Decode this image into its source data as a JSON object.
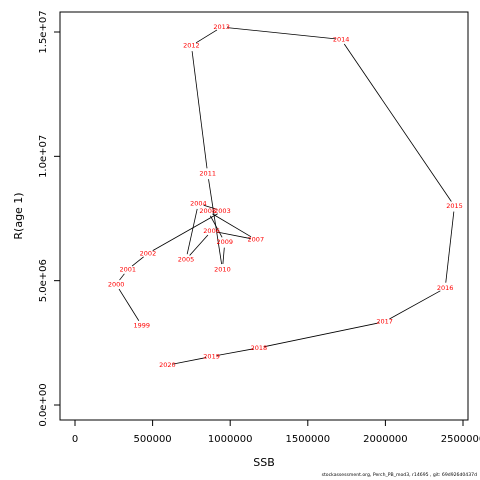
{
  "chart_data": {
    "type": "line",
    "xlabel": "SSB",
    "ylabel": "R(age 1)",
    "x_ticks": [
      0,
      500000,
      1000000,
      1500000,
      2000000,
      2500000
    ],
    "x_tick_labels": [
      "0",
      "500000",
      "1000000",
      "1500000",
      "2000000",
      "2500000"
    ],
    "y_ticks": [
      0,
      5000000,
      10000000,
      15000000
    ],
    "y_tick_labels": [
      "0.0e+00",
      "5.0e+06",
      "1.0e+07",
      "1.5e+07"
    ],
    "grid": false,
    "points": [
      {
        "label": "1999",
        "x": 430000,
        "y": 3200000
      },
      {
        "label": "2000",
        "x": 265000,
        "y": 4850000
      },
      {
        "label": "2001",
        "x": 340000,
        "y": 5450000
      },
      {
        "label": "2002",
        "x": 470000,
        "y": 6100000
      },
      {
        "label": "2003",
        "x": 950000,
        "y": 7800000
      },
      {
        "label": "2004",
        "x": 795000,
        "y": 8100000
      },
      {
        "label": "2005",
        "x": 715000,
        "y": 5850000
      },
      {
        "label": "2006",
        "x": 880000,
        "y": 7000000
      },
      {
        "label": "2007",
        "x": 1165000,
        "y": 6650000
      },
      {
        "label": "2008",
        "x": 855000,
        "y": 7800000
      },
      {
        "label": "2009",
        "x": 965000,
        "y": 6550000
      },
      {
        "label": "2010",
        "x": 950000,
        "y": 5450000
      },
      {
        "label": "2011",
        "x": 855000,
        "y": 9300000
      },
      {
        "label": "2012",
        "x": 750000,
        "y": 14450000
      },
      {
        "label": "2013",
        "x": 945000,
        "y": 15200000
      },
      {
        "label": "2014",
        "x": 1715000,
        "y": 14700000
      },
      {
        "label": "2015",
        "x": 2445000,
        "y": 8000000
      },
      {
        "label": "2016",
        "x": 2385000,
        "y": 4700000
      },
      {
        "label": "2017",
        "x": 1995000,
        "y": 3350000
      },
      {
        "label": "2018",
        "x": 1185000,
        "y": 2300000
      },
      {
        "label": "2019",
        "x": 880000,
        "y": 1950000
      },
      {
        "label": "2020",
        "x": 595000,
        "y": 1600000
      }
    ],
    "line_color": "#000000",
    "label_color": "#ff0000"
  },
  "footer": "stockassessment.org, Perch_PB_mod3, r14695 , git: 69d926d0437d"
}
